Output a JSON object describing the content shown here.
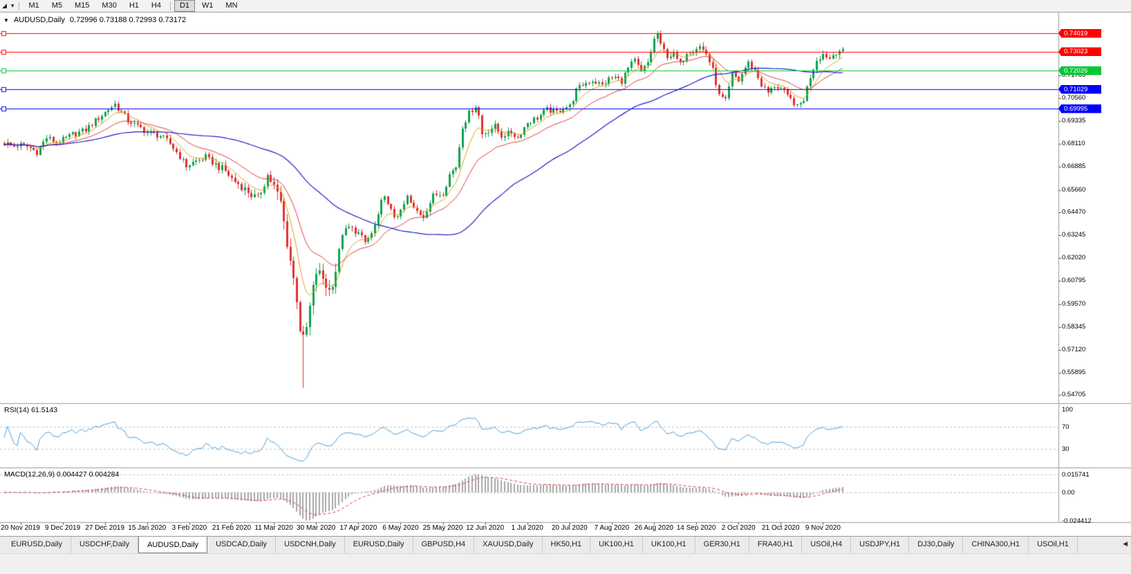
{
  "toolbar": {
    "icons": {
      "chart_tool": "◢",
      "chart_tool_dropdown": "▾"
    },
    "timeframes": [
      "M1",
      "M5",
      "M15",
      "M30",
      "H1",
      "H4",
      "D1",
      "W1",
      "MN"
    ],
    "active_timeframe": "D1"
  },
  "chart": {
    "header": {
      "collapse_icon": "▼",
      "symbol": "AUDUSD,Daily",
      "ohlc": "0.72996 0.73188 0.72993 0.73172"
    },
    "colors": {
      "up_candle": "#0fa14e",
      "down_candle": "#df3030",
      "ma_fast": "#d9a520",
      "ma_medium": "#e23b3b",
      "ma_slow": "#1c1ccd",
      "line_red": "#ff0000",
      "line_green": "#00c832",
      "line_blue": "#0000ff",
      "rsi_line": "#4a9edb",
      "macd_histogram": "#a8a8a8",
      "macd_signal": "#dd3b3b"
    },
    "hlines": [
      {
        "price": 0.74019,
        "label": "0.74019",
        "color": "red"
      },
      {
        "price": 0.73023,
        "label": "0.73023",
        "color": "red"
      },
      {
        "price": 0.72026,
        "label": "0.72026",
        "color": "green"
      },
      {
        "price": 0.71029,
        "label": "0.71029",
        "color": "blue"
      },
      {
        "price": 0.69995,
        "label": "0.69995",
        "color": "blue"
      }
    ],
    "y_ticks": [
      "0.71785",
      "0.70560",
      "0.69335",
      "0.68110",
      "0.66885",
      "0.65660",
      "0.64470",
      "0.63245",
      "0.62020",
      "0.60795",
      "0.59570",
      "0.58345",
      "0.57120",
      "0.55895",
      "0.54705"
    ],
    "x_ticks": [
      "20 Nov 2019",
      "9 Dec 2019",
      "27 Dec 2019",
      "15 Jan 2020",
      "3 Feb 2020",
      "21 Feb 2020",
      "11 Mar 2020",
      "30 Mar 2020",
      "17 Apr 2020",
      "6 May 2020",
      "25 May 2020",
      "12 Jun 2020",
      "1 Jul 2020",
      "20 Jul 2020",
      "7 Aug 2020",
      "26 Aug 2020",
      "14 Sep 2020",
      "2 Oct 2020",
      "21 Oct 2020",
      "9 Nov 2020"
    ]
  },
  "rsi": {
    "label": "RSI(14) 61.5143",
    "levels": [
      "100",
      "70",
      "30"
    ],
    "current": 61.5143
  },
  "macd": {
    "label": "MACD(12,26,9) 0.004427 0.004284",
    "axis": [
      "0.015741",
      "0.00",
      "-0.024412"
    ]
  },
  "tabs": {
    "items": [
      "EURUSD,Daily",
      "USDCHF,Daily",
      "AUDUSD,Daily",
      "USDCAD,Daily",
      "USDCNH,Daily",
      "EURUSD,Daily",
      "GBPUSD,H4",
      "XAUUSD,Daily",
      "HK50,H1",
      "UK100,H1",
      "UK100,H1",
      "GER30,H1",
      "FRA40,H1",
      "USOil,H4",
      "USDJPY,H1",
      "DJ30,Daily",
      "CHINA300,H1",
      "USOil,H1"
    ],
    "active_index": 2,
    "scroll_left_icon": "◀"
  },
  "chart_data": {
    "type": "candlestick",
    "symbol": "AUDUSD",
    "timeframe": "Daily",
    "current_bar": {
      "open": 0.72996,
      "high": 0.73188,
      "low": 0.72993,
      "close": 0.73172
    },
    "horizontal_levels": [
      0.74019,
      0.73023,
      0.72026,
      0.71029,
      0.69995
    ],
    "price_range_visible": [
      0.54705,
      0.74019
    ],
    "indicators": {
      "rsi": {
        "period": 14,
        "current": 61.5143,
        "levels": [
          100,
          70,
          30
        ]
      },
      "macd": {
        "fast": 12,
        "slow": 26,
        "signal": 9,
        "current_macd": 0.004427,
        "current_signal": 0.004284,
        "axis_max": 0.015741,
        "axis_min": -0.024412
      }
    },
    "days_total": 259,
    "x_label_days": [
      5,
      18,
      31,
      44,
      57,
      70,
      83,
      96,
      109,
      122,
      135,
      148,
      161,
      174,
      187,
      200,
      213,
      226,
      239,
      252
    ],
    "anchors": [
      [
        0,
        0.6815
      ],
      [
        3,
        0.68
      ],
      [
        5,
        0.6805
      ],
      [
        8,
        0.679
      ],
      [
        10,
        0.6768
      ],
      [
        13,
        0.6845
      ],
      [
        16,
        0.682
      ],
      [
        18,
        0.6832
      ],
      [
        21,
        0.6862
      ],
      [
        25,
        0.6885
      ],
      [
        29,
        0.695
      ],
      [
        32,
        0.6995
      ],
      [
        34,
        0.7025
      ],
      [
        36,
        0.698
      ],
      [
        38,
        0.6935
      ],
      [
        41,
        0.6905
      ],
      [
        44,
        0.6872
      ],
      [
        48,
        0.6855
      ],
      [
        51,
        0.6812
      ],
      [
        54,
        0.6745
      ],
      [
        56,
        0.6692
      ],
      [
        59,
        0.672
      ],
      [
        62,
        0.6742
      ],
      [
        65,
        0.67
      ],
      [
        68,
        0.6665
      ],
      [
        70,
        0.6625
      ],
      [
        73,
        0.6585
      ],
      [
        76,
        0.654
      ],
      [
        78,
        0.652
      ],
      [
        80,
        0.66
      ],
      [
        81,
        0.6645
      ],
      [
        83,
        0.658
      ],
      [
        85,
        0.6495
      ],
      [
        86,
        0.639
      ],
      [
        87,
        0.629
      ],
      [
        88,
        0.619
      ],
      [
        89,
        0.609
      ],
      [
        90,
        0.599
      ],
      [
        91,
        0.583
      ],
      [
        92,
        0.576
      ],
      [
        93,
        0.5825
      ],
      [
        94,
        0.5935
      ],
      [
        96,
        0.613
      ],
      [
        98,
        0.6095
      ],
      [
        100,
        0.6025
      ],
      [
        102,
        0.614
      ],
      [
        104,
        0.6335
      ],
      [
        106,
        0.6365
      ],
      [
        109,
        0.6335
      ],
      [
        111,
        0.6285
      ],
      [
        113,
        0.633
      ],
      [
        115,
        0.642
      ],
      [
        116,
        0.65
      ],
      [
        117,
        0.6545
      ],
      [
        118,
        0.648
      ],
      [
        120,
        0.6425
      ],
      [
        122,
        0.6445
      ],
      [
        124,
        0.6528
      ],
      [
        126,
        0.6462
      ],
      [
        129,
        0.6428
      ],
      [
        132,
        0.6535
      ],
      [
        135,
        0.6552
      ],
      [
        137,
        0.6648
      ],
      [
        139,
        0.669
      ],
      [
        141,
        0.6905
      ],
      [
        143,
        0.6975
      ],
      [
        145,
        0.7015
      ],
      [
        146,
        0.696
      ],
      [
        147,
        0.6862
      ],
      [
        149,
        0.6885
      ],
      [
        151,
        0.6905
      ],
      [
        153,
        0.6855
      ],
      [
        156,
        0.6872
      ],
      [
        158,
        0.6845
      ],
      [
        161,
        0.6925
      ],
      [
        164,
        0.6952
      ],
      [
        167,
        0.6992
      ],
      [
        170,
        0.6982
      ],
      [
        172,
        0.7005
      ],
      [
        174,
        0.7012
      ],
      [
        176,
        0.7095
      ],
      [
        178,
        0.7128
      ],
      [
        181,
        0.7152
      ],
      [
        184,
        0.7122
      ],
      [
        186,
        0.7158
      ],
      [
        188,
        0.7165
      ],
      [
        190,
        0.7148
      ],
      [
        192,
        0.7215
      ],
      [
        194,
        0.7255
      ],
      [
        196,
        0.7192
      ],
      [
        198,
        0.7245
      ],
      [
        200,
        0.7368
      ],
      [
        201,
        0.7402
      ],
      [
        202,
        0.7335
      ],
      [
        204,
        0.7282
      ],
      [
        206,
        0.7288
      ],
      [
        208,
        0.7232
      ],
      [
        210,
        0.7302
      ],
      [
        212,
        0.7315
      ],
      [
        214,
        0.7332
      ],
      [
        216,
        0.7295
      ],
      [
        218,
        0.7205
      ],
      [
        220,
        0.7068
      ],
      [
        222,
        0.7038
      ],
      [
        224,
        0.7182
      ],
      [
        226,
        0.7148
      ],
      [
        228,
        0.7218
      ],
      [
        229,
        0.7242
      ],
      [
        231,
        0.7205
      ],
      [
        233,
        0.7128
      ],
      [
        235,
        0.7082
      ],
      [
        237,
        0.7122
      ],
      [
        239,
        0.7108
      ],
      [
        241,
        0.7062
      ],
      [
        243,
        0.7032
      ],
      [
        244,
        0.7005
      ],
      [
        246,
        0.7052
      ],
      [
        248,
        0.7172
      ],
      [
        250,
        0.7262
      ],
      [
        252,
        0.7292
      ],
      [
        254,
        0.7268
      ],
      [
        256,
        0.7302
      ],
      [
        258,
        0.73172
      ]
    ],
    "special": {
      "crash_low_day": 92,
      "crash_low": 0.551,
      "peak_day": 201,
      "peak_high": 0.7414
    }
  }
}
